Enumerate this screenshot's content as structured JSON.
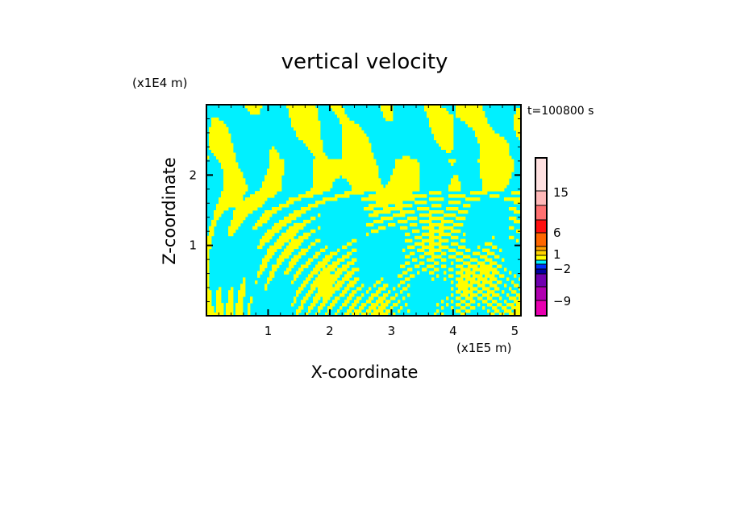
{
  "chart_data": {
    "type": "heatmap",
    "title": "vertical velocity",
    "xlabel": "X-coordinate",
    "ylabel": "Z-coordinate",
    "x_unit": "(x1E5 m)",
    "y_unit": "(x1E4 m)",
    "time_label": "t=100800 s",
    "xlim": [
      0,
      5.1
    ],
    "ylim": [
      0,
      3.0
    ],
    "x_ticks": [
      1,
      2,
      3,
      4,
      5
    ],
    "y_ticks": [
      1,
      2
    ],
    "x_tick_labels": [
      "1",
      "2",
      "3",
      "4",
      "5"
    ],
    "y_tick_labels": [
      "1",
      "2"
    ],
    "field_colors": {
      "positive": "#ffff00",
      "negative": "#00f0ff"
    },
    "colorbar": {
      "colors_top_to_bottom": [
        "#ffe0e0",
        "#ffb8b8",
        "#ff7070",
        "#ff1010",
        "#ff6600",
        "#ffa000",
        "#ffd000",
        "#ffff00",
        "#00f0ff",
        "#0030ff",
        "#0000a0",
        "#7000b0",
        "#b000b0",
        "#e800b0"
      ],
      "labels": [
        {
          "text": "15",
          "value": 15
        },
        {
          "text": "6",
          "value": 6
        },
        {
          "text": "1",
          "value": 1
        },
        {
          "text": "−2",
          "value": -2
        },
        {
          "text": "−9",
          "value": -9
        }
      ]
    }
  }
}
